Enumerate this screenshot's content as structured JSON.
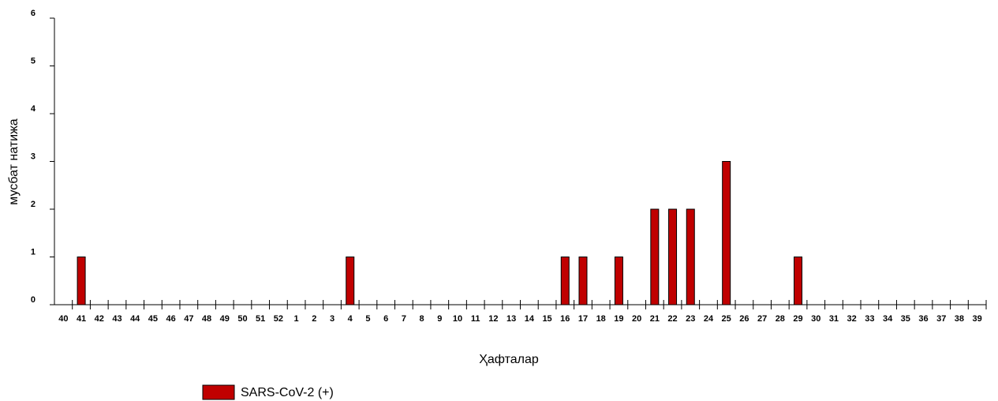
{
  "chart_data": {
    "type": "bar",
    "y_label": "мусбат натижа",
    "x_label": "Ҳафталар",
    "categories": [
      "40",
      "41",
      "42",
      "43",
      "44",
      "45",
      "46",
      "47",
      "48",
      "49",
      "50",
      "51",
      "52",
      "1",
      "2",
      "3",
      "4",
      "5",
      "6",
      "7",
      "8",
      "9",
      "10",
      "11",
      "12",
      "13",
      "14",
      "15",
      "16",
      "17",
      "18",
      "19",
      "20",
      "21",
      "22",
      "23",
      "24",
      "25",
      "26",
      "27",
      "28",
      "29",
      "30",
      "31",
      "32",
      "33",
      "34",
      "35",
      "36",
      "37",
      "38",
      "39"
    ],
    "series": [
      {
        "name": "SARS-CoV-2 (+)",
        "color": "#c00000",
        "values": [
          0,
          1,
          0,
          0,
          0,
          0,
          0,
          0,
          0,
          0,
          0,
          0,
          0,
          0,
          0,
          0,
          1,
          0,
          0,
          0,
          0,
          0,
          0,
          0,
          0,
          0,
          0,
          0,
          1,
          1,
          0,
          1,
          0,
          2,
          2,
          2,
          0,
          3,
          0,
          0,
          0,
          1,
          0,
          0,
          0,
          0,
          0,
          0,
          0,
          0,
          0,
          0
        ]
      }
    ],
    "ylim": [
      0,
      6
    ],
    "yticks": [
      0,
      1,
      2,
      3,
      4,
      5,
      6
    ]
  }
}
